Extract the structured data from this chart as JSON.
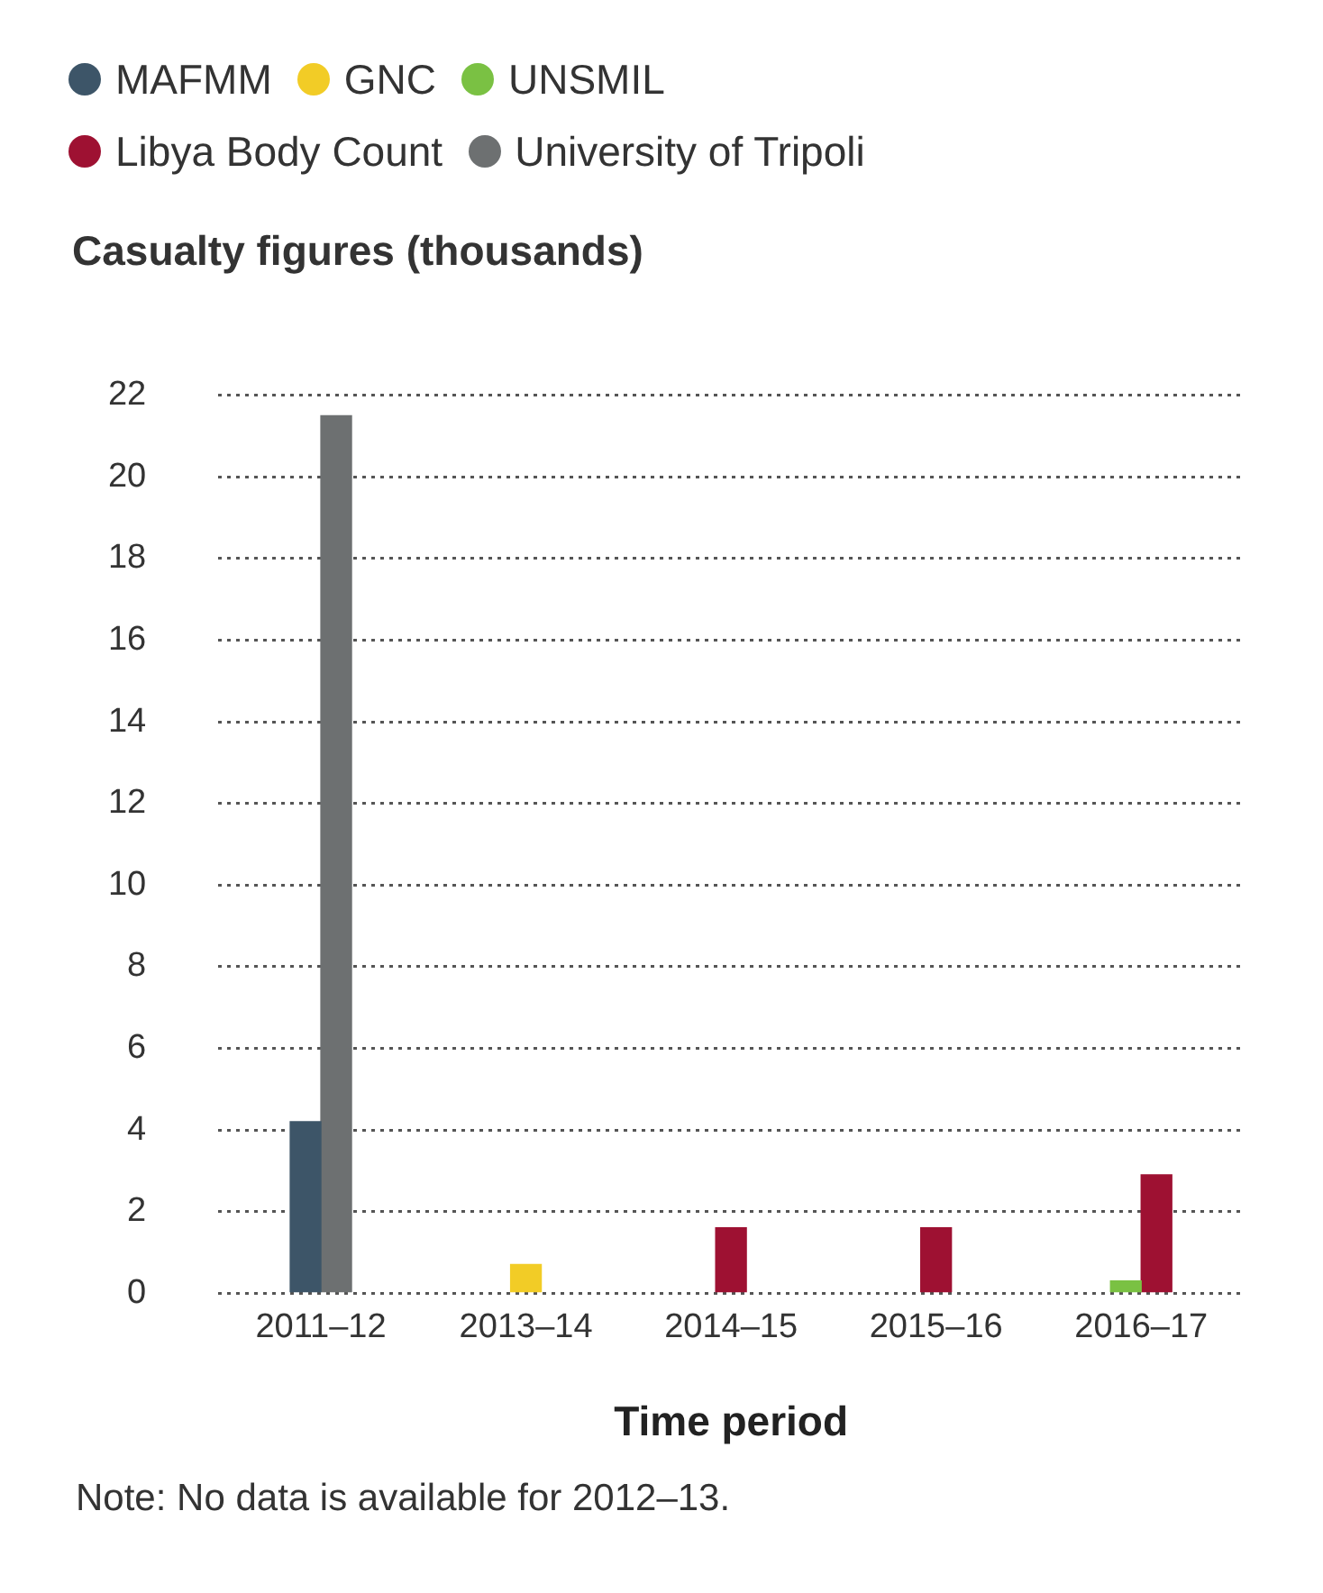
{
  "chart_data": {
    "type": "bar",
    "ylabel": "Casualty figures (thousands)",
    "xlabel": "Time period",
    "categories": [
      "2011–12",
      "2013–14",
      "2014–15",
      "2015–16",
      "2016–17"
    ],
    "series": [
      {
        "name": "MAFMM",
        "color": "#3d5568",
        "values": [
          4.2,
          null,
          null,
          null,
          null
        ]
      },
      {
        "name": "GNC",
        "color": "#f2cc26",
        "values": [
          null,
          0.7,
          null,
          null,
          null
        ]
      },
      {
        "name": "UNSMIL",
        "color": "#7ac143",
        "values": [
          null,
          null,
          null,
          null,
          0.3
        ]
      },
      {
        "name": "Libya Body Count",
        "color": "#9e1132",
        "values": [
          null,
          null,
          1.6,
          1.6,
          2.9
        ]
      },
      {
        "name": "University of Tripoli",
        "color": "#6d7071",
        "values": [
          21.5,
          null,
          null,
          null,
          null
        ]
      }
    ],
    "ylim": [
      0,
      22
    ],
    "yticks": [
      0,
      2,
      4,
      6,
      8,
      10,
      12,
      14,
      16,
      18,
      20,
      22
    ],
    "grid": "y",
    "legend": "top left",
    "annotations": [
      "Note: No data is available for 2012–13."
    ]
  }
}
